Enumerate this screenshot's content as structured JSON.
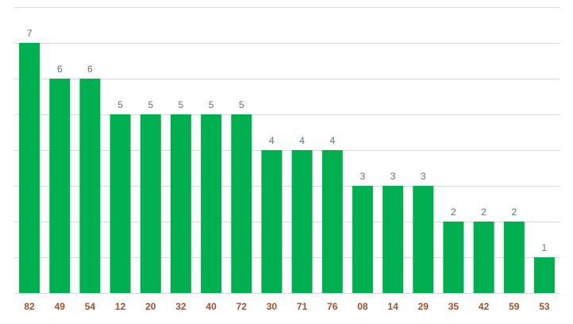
{
  "chart_data": {
    "type": "bar",
    "categories": [
      "82",
      "49",
      "54",
      "12",
      "20",
      "32",
      "40",
      "72",
      "30",
      "71",
      "76",
      "08",
      "14",
      "29",
      "35",
      "42",
      "59",
      "53"
    ],
    "values": [
      7,
      6,
      6,
      5,
      5,
      5,
      5,
      5,
      4,
      4,
      4,
      3,
      3,
      3,
      2,
      2,
      2,
      1
    ],
    "title": "",
    "xlabel": "",
    "ylabel": "",
    "ylim": [
      0,
      8
    ],
    "grid": true,
    "legend": "none",
    "colors": {
      "bar": "#00b050",
      "value_label": "#5f7380",
      "category_label": "#a0522d",
      "grid": "#d9d9d9"
    }
  }
}
